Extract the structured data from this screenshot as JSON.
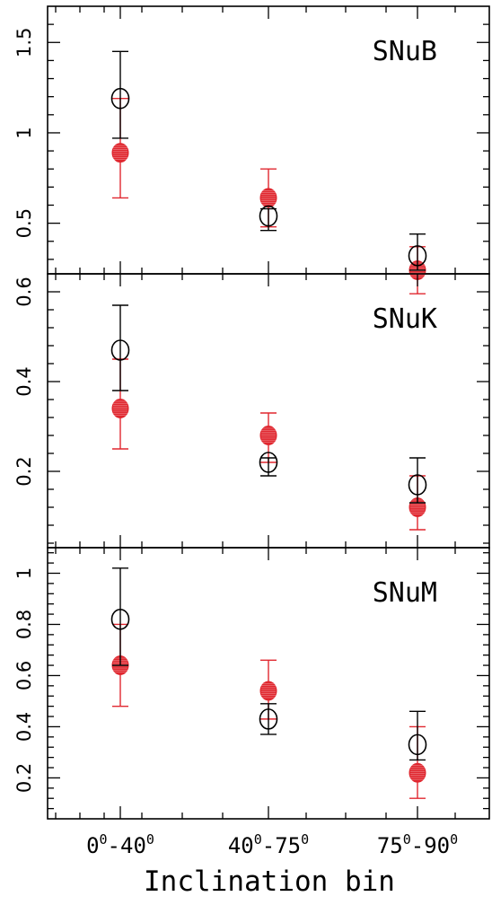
{
  "chart_data": {
    "type": "scatter",
    "xlabel": "Inclination bin",
    "categories": [
      {
        "base": "0",
        "sup1": "0",
        "mid": "-40",
        "sup2": "0"
      },
      {
        "base": "40",
        "sup1": "0",
        "mid": "-75",
        "sup2": "0"
      },
      {
        "base": "75",
        "sup1": "0",
        "mid": "-90",
        "sup2": "0"
      }
    ],
    "colors": {
      "open": "#000000",
      "filled": "#e0272f"
    },
    "markers": {
      "open": "open-circle",
      "filled": "filled-circle"
    },
    "panels": [
      {
        "label": "SNuB",
        "ylim": [
          0.22,
          1.7
        ],
        "yticks": [
          0.5,
          1,
          1.5
        ],
        "ytick_labels": [
          "0.5",
          "1",
          "1.5"
        ],
        "series": [
          {
            "marker": "open",
            "values": [
              1.19,
              0.54,
              0.32
            ],
            "err_low": [
              0.97,
              0.46,
              0.24
            ],
            "err_high": [
              1.45,
              0.58,
              0.44
            ]
          },
          {
            "marker": "filled",
            "values": [
              0.89,
              0.64,
              0.24
            ],
            "err_low": [
              0.64,
              0.48,
              0.11
            ],
            "err_high": [
              1.19,
              0.8,
              0.37
            ]
          }
        ]
      },
      {
        "label": "SNuK",
        "ylim": [
          0.03,
          0.64
        ],
        "yticks": [
          0.2,
          0.4,
          0.6
        ],
        "ytick_labels": [
          "0.2",
          "0.4",
          "0.6"
        ],
        "series": [
          {
            "marker": "open",
            "values": [
              0.47,
              0.22,
              0.17
            ],
            "err_low": [
              0.38,
              0.19,
              0.13
            ],
            "err_high": [
              0.57,
              0.23,
              0.23
            ]
          },
          {
            "marker": "filled",
            "values": [
              0.34,
              0.28,
              0.12
            ],
            "err_low": [
              0.25,
              0.22,
              0.07
            ],
            "err_high": [
              0.45,
              0.33,
              0.19
            ]
          }
        ]
      },
      {
        "label": "SNuM",
        "ylim": [
          0.04,
          1.1
        ],
        "yticks": [
          0.2,
          0.4,
          0.6,
          0.8,
          1
        ],
        "ytick_labels": [
          "0.2",
          "0.4",
          "0.6",
          "0.8",
          "1"
        ],
        "series": [
          {
            "marker": "open",
            "values": [
              0.82,
              0.43,
              0.33
            ],
            "err_low": [
              0.64,
              0.37,
              0.27
            ],
            "err_high": [
              1.02,
              0.49,
              0.46
            ]
          },
          {
            "marker": "filled",
            "values": [
              0.64,
              0.54,
              0.22
            ],
            "err_low": [
              0.48,
              0.43,
              0.12
            ],
            "err_high": [
              0.8,
              0.66,
              0.4
            ]
          }
        ]
      }
    ]
  }
}
